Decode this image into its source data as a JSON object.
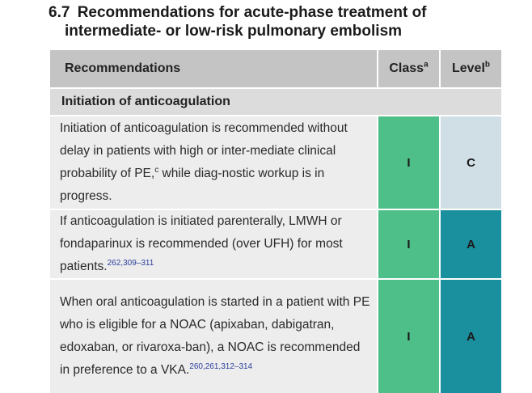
{
  "section_title": {
    "number": "6.7",
    "line1": "Recommendations for acute-phase treatment of",
    "line2": "intermediate- or low-risk pulmonary embolism"
  },
  "table": {
    "headers": {
      "recommendations": "Recommendations",
      "class": "Class",
      "class_footnote": "a",
      "level": "Level",
      "level_footnote": "b"
    },
    "sections": [
      {
        "heading": "Initiation of anticoagulation",
        "rows": [
          {
            "text_before": "Initiation of anticoagulation is recommended without delay in patients with high or inter-mediate clinical probability of PE,",
            "footnote": "c",
            "text_after": " while diag-nostic workup is in progress.",
            "refs": "",
            "class": "I",
            "level": "C"
          },
          {
            "text_before": "If anticoagulation is initiated parenterally, LMWH or fondaparinux is recommended (over UFH) for most patients.",
            "footnote": "",
            "text_after": "",
            "refs": "262,309–311",
            "class": "I",
            "level": "A"
          },
          {
            "text_before": "When oral anticoagulation is started in a patient with PE who is eligible for a NOAC (apixaban, dabigatran, edoxaban, or rivaroxa-ban), a NOAC is recommended in preference to a VKA.",
            "footnote": "",
            "text_after": "",
            "refs": "260,261,312–314",
            "class": "I",
            "level": "A"
          }
        ]
      }
    ]
  },
  "colors": {
    "header_bg": "#c4c4c4",
    "section_bg": "#dcdcdc",
    "row_bg": "#ededed",
    "class_I": "#4fbf89",
    "level_C": "#cfdfe5",
    "level_A": "#1a8f9e",
    "reference_link": "#2a3f9c"
  }
}
